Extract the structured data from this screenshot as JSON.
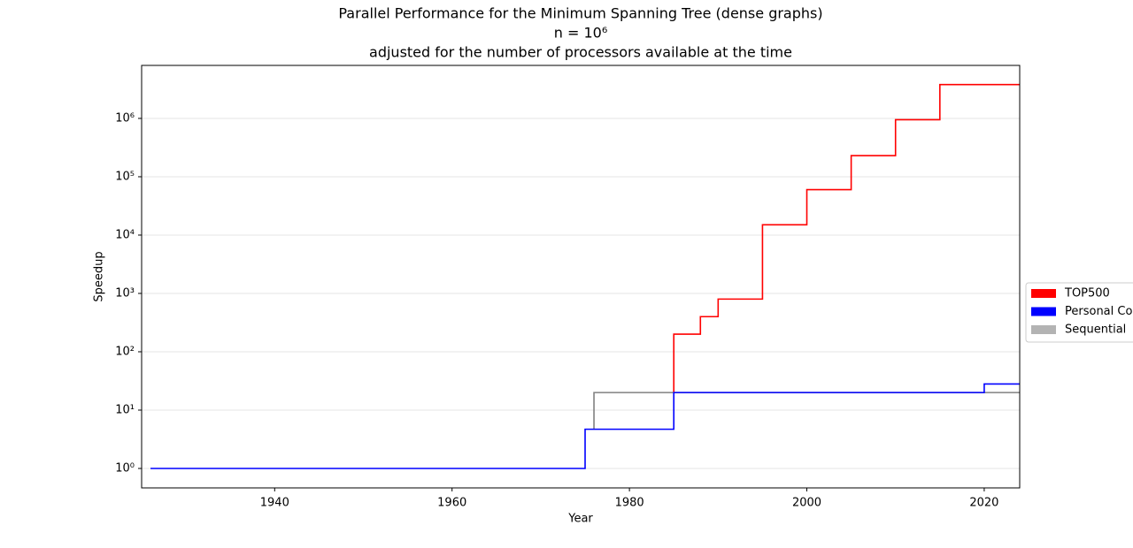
{
  "chart_data": {
    "type": "step",
    "title_lines": [
      "Parallel Performance for the Minimum Spanning Tree (dense graphs)",
      "n = 10⁶",
      "adjusted for the number of processors available at the time"
    ],
    "x_label": "Year",
    "y_label": "Speedup",
    "xlim": [
      1925,
      2024
    ],
    "xticks": [
      1940,
      1960,
      1980,
      2000,
      2020
    ],
    "ylim": [
      0.464,
      8100000
    ],
    "log_y": true,
    "grid": true,
    "legend": "outside right",
    "yticks": [
      {
        "value": 1,
        "label": "10⁰"
      },
      {
        "value": 10,
        "label": "10¹"
      },
      {
        "value": 100,
        "label": "10²"
      },
      {
        "value": 1000,
        "label": "10³"
      },
      {
        "value": 10000,
        "label": "10⁴"
      },
      {
        "value": 100000,
        "label": "10⁵"
      },
      {
        "value": 1000000,
        "label": "10⁶"
      }
    ],
    "series": [
      {
        "name": "TOP500",
        "color": "#ff0000",
        "x": [
          1985,
          1985,
          1988,
          1990,
          1995,
          2000,
          2005,
          2010,
          2015,
          2024
        ],
        "values": [
          20,
          200,
          400,
          800,
          15000,
          60000,
          230000,
          950000,
          3800000,
          3800000
        ]
      },
      {
        "name": "Personal Computers",
        "color": "#0000ff",
        "x": [
          1926,
          1975,
          1985,
          2020,
          2024
        ],
        "values": [
          1,
          4.7,
          20,
          28,
          28
        ]
      },
      {
        "name": "Sequential",
        "color": "#b3b3b3",
        "line_color": "#808080",
        "x": [
          1976,
          1976,
          2024
        ],
        "values": [
          4.7,
          20,
          20
        ]
      }
    ]
  }
}
